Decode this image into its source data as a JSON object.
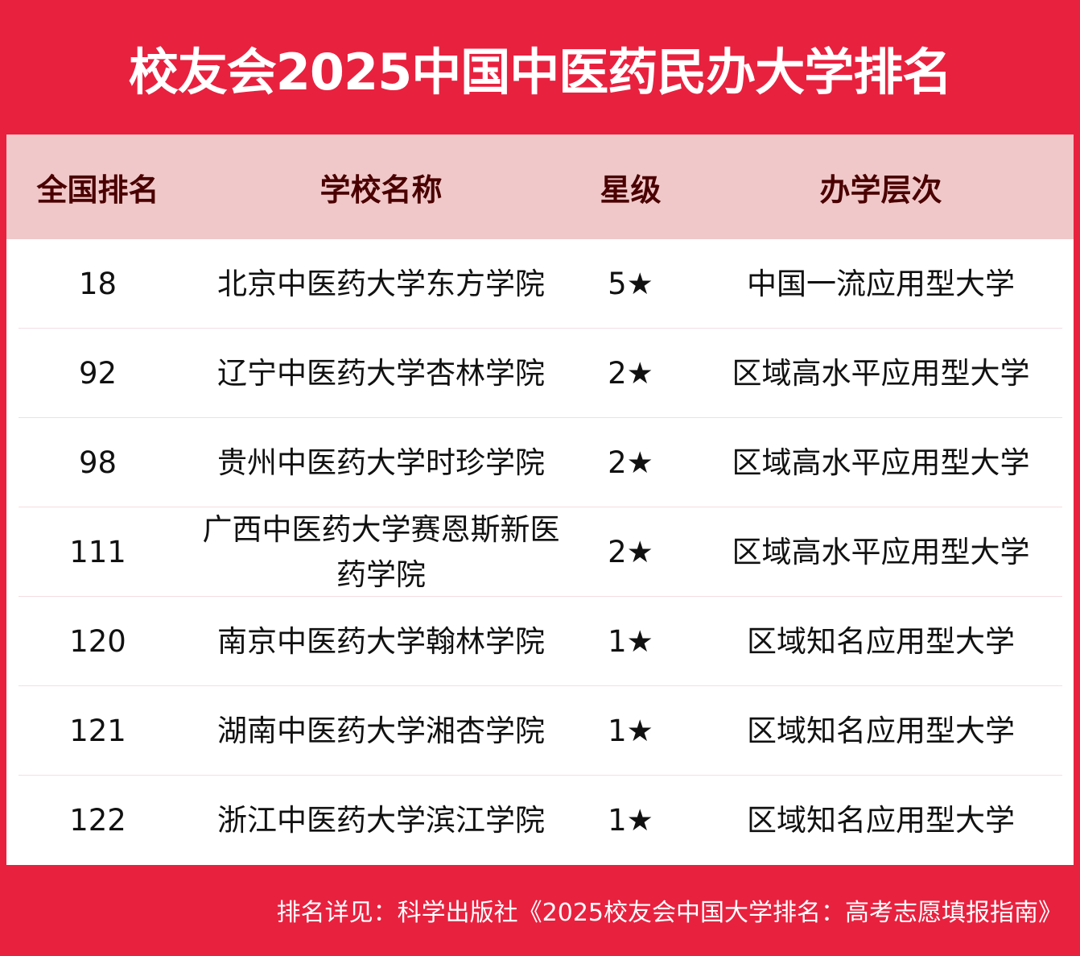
{
  "title": "校友会2025中国中医药民办大学排名",
  "colors": {
    "brand_red": "#e8213f",
    "header_bg": "#f0c8c9",
    "header_text": "#4a0000"
  },
  "table": {
    "columns": [
      "全国排名",
      "学校名称",
      "星级",
      "办学层次"
    ],
    "rows": [
      {
        "rank": "18",
        "name": "北京中医药大学东方学院",
        "stars": "5★",
        "level": "中国一流应用型大学"
      },
      {
        "rank": "92",
        "name": "辽宁中医药大学杏林学院",
        "stars": "2★",
        "level": "区域高水平应用型大学"
      },
      {
        "rank": "98",
        "name": "贵州中医药大学时珍学院",
        "stars": "2★",
        "level": "区域高水平应用型大学"
      },
      {
        "rank": "111",
        "name": "广西中医药大学赛恩斯新医药学院",
        "stars": "2★",
        "level": "区域高水平应用型大学"
      },
      {
        "rank": "120",
        "name": "南京中医药大学翰林学院",
        "stars": "1★",
        "level": "区域知名应用型大学"
      },
      {
        "rank": "121",
        "name": "湖南中医药大学湘杏学院",
        "stars": "1★",
        "level": "区域知名应用型大学"
      },
      {
        "rank": "122",
        "name": "浙江中医药大学滨江学院",
        "stars": "1★",
        "level": "区域知名应用型大学"
      }
    ]
  },
  "footer": "排名详见：科学出版社《2025校友会中国大学排名：高考志愿填报指南》"
}
